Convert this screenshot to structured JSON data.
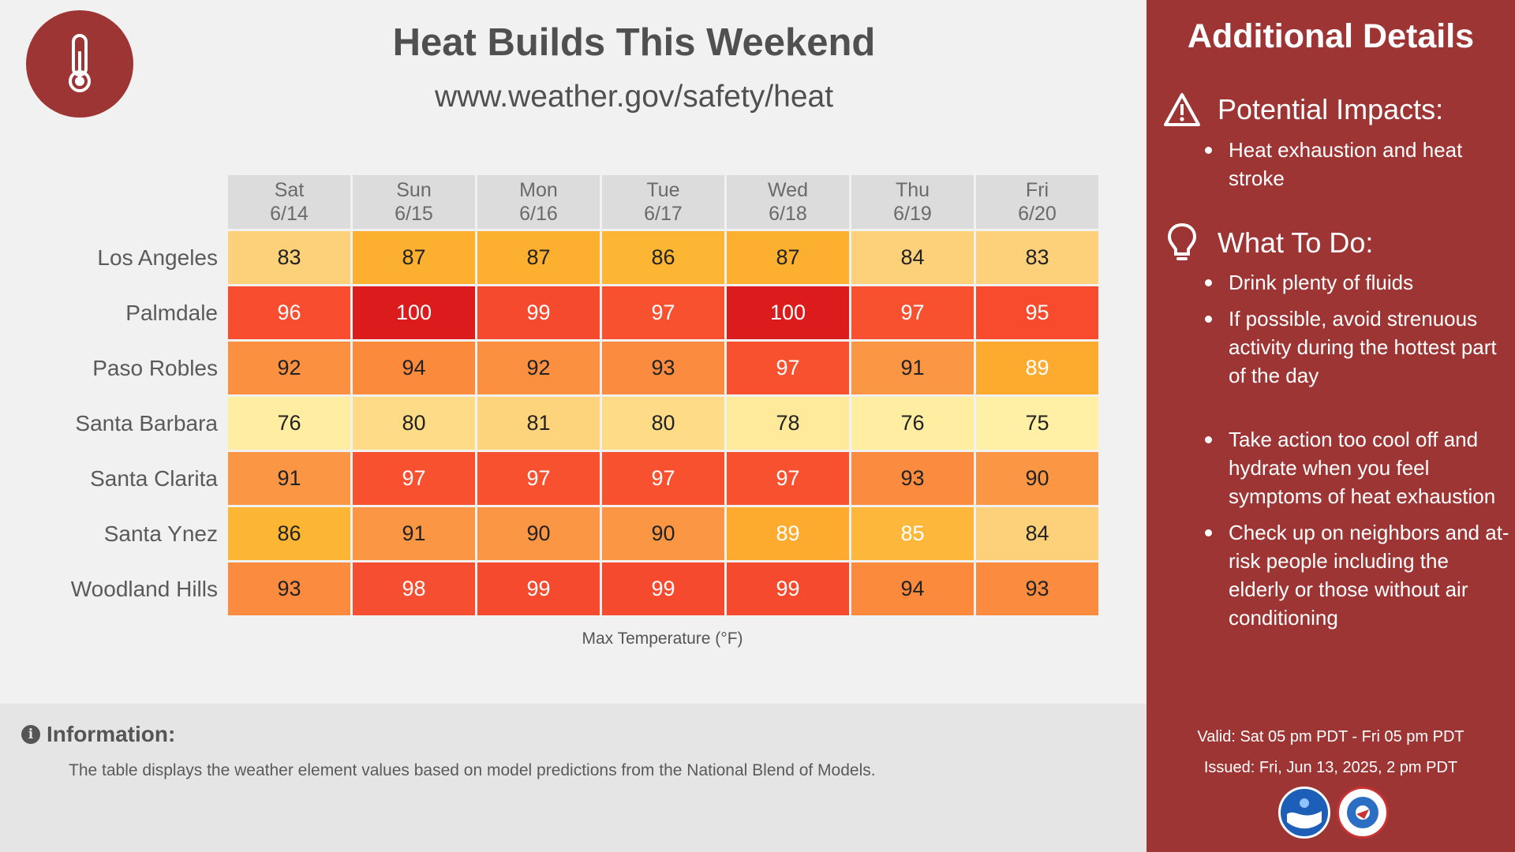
{
  "header": {
    "title": "Heat Builds This Weekend",
    "url": "www.weather.gov/safety/heat"
  },
  "table": {
    "days": [
      {
        "dow": "Sat",
        "date": "6/14"
      },
      {
        "dow": "Sun",
        "date": "6/15"
      },
      {
        "dow": "Mon",
        "date": "6/16"
      },
      {
        "dow": "Tue",
        "date": "6/17"
      },
      {
        "dow": "Wed",
        "date": "6/18"
      },
      {
        "dow": "Thu",
        "date": "6/19"
      },
      {
        "dow": "Fri",
        "date": "6/20"
      }
    ],
    "rows": [
      {
        "city": "Los Angeles",
        "values": [
          83,
          87,
          87,
          86,
          87,
          84,
          83
        ]
      },
      {
        "city": "Palmdale",
        "values": [
          96,
          100,
          99,
          97,
          100,
          97,
          95
        ]
      },
      {
        "city": "Paso Robles",
        "values": [
          92,
          94,
          92,
          93,
          97,
          91,
          89
        ]
      },
      {
        "city": "Santa Barbara",
        "values": [
          76,
          80,
          81,
          80,
          78,
          76,
          75
        ]
      },
      {
        "city": "Santa Clarita",
        "values": [
          91,
          97,
          97,
          97,
          97,
          93,
          90
        ]
      },
      {
        "city": "Santa Ynez",
        "values": [
          86,
          91,
          90,
          90,
          89,
          85,
          84
        ]
      },
      {
        "city": "Woodland Hills",
        "values": [
          93,
          98,
          99,
          99,
          99,
          94,
          93
        ]
      }
    ],
    "caption": "Max Temperature (°F)"
  },
  "info": {
    "title": "Information:",
    "icon_glyph": "i",
    "text": "The table displays the weather element values based on model predictions from the National Blend of Models."
  },
  "side": {
    "title": "Additional Details",
    "impacts_heading": "Potential Impacts:",
    "impacts": [
      "Heat exhaustion and heat stroke"
    ],
    "todo_heading": "What To Do:",
    "todo": [
      "Drink plenty of fluids",
      "If possible, avoid strenuous activity during the hottest part of the day",
      "Take action too cool off and hydrate when you feel symptoms of heat exhaustion",
      "Check up on neighbors and at-risk people including the elderly or those without air conditioning"
    ],
    "valid": "Valid: Sat 05 pm PDT - Fri 05 pm PDT",
    "issued": "Issued: Fri, Jun 13, 2025, 2 pm PDT"
  },
  "colors": {
    "panel": "#9e3535",
    "background": "#f1f1f1",
    "scale": {
      "75": "#fff0a6",
      "76": "#ffeea2",
      "78": "#ffe99a",
      "80": "#fedb86",
      "81": "#fdd47b",
      "83": "#fdd17a",
      "84": "#fdd17a",
      "85": "#fdb83c",
      "86": "#fdb634",
      "87": "#fdb030",
      "89": "#fcab2e",
      "90": "#fb9645",
      "91": "#fb9644",
      "92": "#fb9140",
      "93": "#fb8c3f",
      "94": "#fb8a3c",
      "95": "#f84b2e",
      "96": "#f84d2f",
      "97": "#f7512f",
      "98": "#f54e30",
      "99": "#f64a2f",
      "100": "#dc1c1c"
    }
  }
}
